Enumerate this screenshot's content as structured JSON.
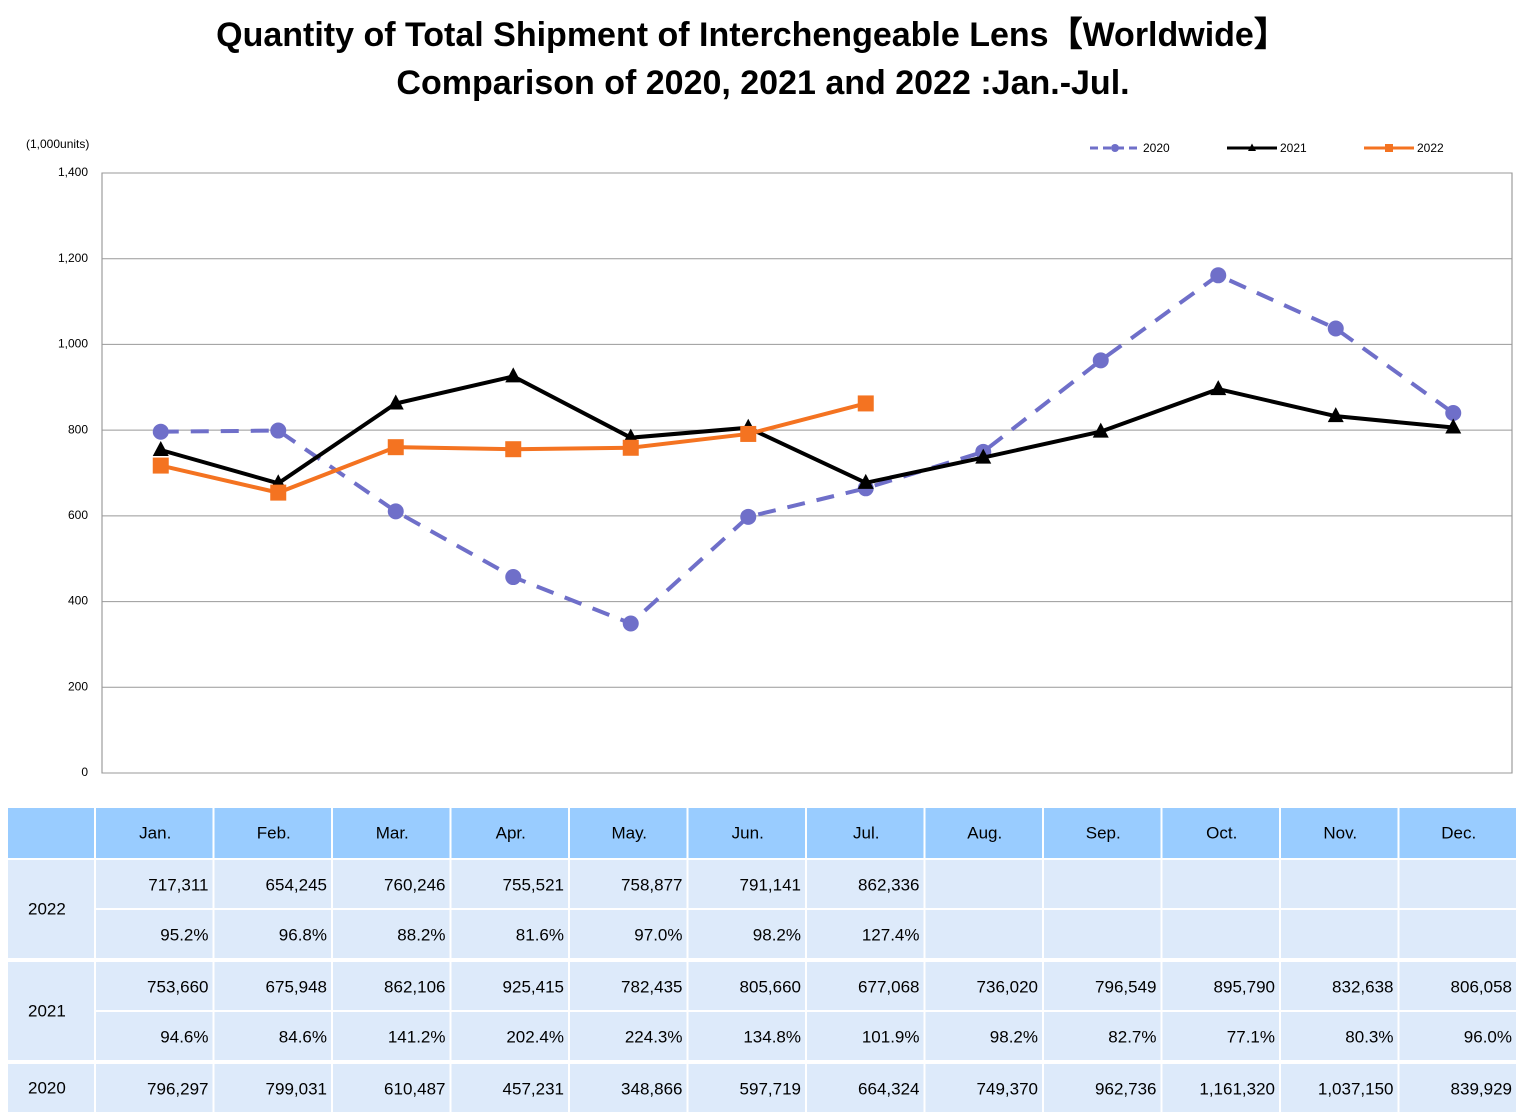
{
  "chart_data": {
    "type": "line",
    "title": [
      "Quantity of Total Shipment of Interchengeable Lens【Worldwide】",
      "Comparison of 2020, 2021 and 2022 :Jan.-Jul."
    ],
    "y_unit_label": "(1,000units)",
    "categories": [
      "Jan.",
      "Feb.",
      "Mar.",
      "Apr.",
      "May.",
      "Jun.",
      "Jul.",
      "Aug.",
      "Sep.",
      "Oct.",
      "Nov.",
      "Dec."
    ],
    "ylim": [
      0,
      1400
    ],
    "yticks": [
      0,
      200,
      400,
      600,
      800,
      {
        "value": 1000,
        "label": "1,000"
      },
      {
        "value": 1200,
        "label": "1,200"
      },
      {
        "value": 1400,
        "label": "1,400"
      }
    ],
    "grid": true,
    "legend": "top-right",
    "series": [
      {
        "name": "2020",
        "color": "#6f6fc9",
        "dash": true,
        "marker": "circle",
        "values": [
          796.297,
          799.031,
          610.487,
          457.231,
          348.866,
          597.719,
          664.324,
          749.37,
          962.736,
          1161.32,
          1037.15,
          839.929
        ]
      },
      {
        "name": "2021",
        "color": "#000000",
        "dash": false,
        "marker": "triangle",
        "values": [
          753.66,
          675.948,
          862.106,
          925.415,
          782.435,
          805.66,
          677.068,
          736.02,
          796.549,
          895.79,
          832.638,
          806.058
        ]
      },
      {
        "name": "2022",
        "color": "#f47321",
        "dash": false,
        "marker": "square",
        "values": [
          717.311,
          654.245,
          760.246,
          755.521,
          758.877,
          791.141,
          862.336,
          null,
          null,
          null,
          null,
          null
        ]
      }
    ]
  },
  "table": {
    "rows": [
      {
        "label": "2022",
        "values": [
          "717,311",
          "654,245",
          "760,246",
          "755,521",
          "758,877",
          "791,141",
          "862,336"
        ],
        "ratios": [
          "95.2%",
          "96.8%",
          "88.2%",
          "81.6%",
          "97.0%",
          "98.2%",
          "127.4%"
        ]
      },
      {
        "label": "2021",
        "values": [
          "753,660",
          "675,948",
          "862,106",
          "925,415",
          "782,435",
          "805,660",
          "677,068",
          "736,020",
          "796,549",
          "895,790",
          "832,638",
          "806,058"
        ],
        "ratios": [
          "94.6%",
          "84.6%",
          "141.2%",
          "202.4%",
          "224.3%",
          "134.8%",
          "101.9%",
          "98.2%",
          "82.7%",
          "77.1%",
          "80.3%",
          "96.0%"
        ]
      },
      {
        "label": "2020",
        "values": [
          "796,297",
          "799,031",
          "610,487",
          "457,231",
          "348,866",
          "597,719",
          "664,324",
          "749,370",
          "962,736",
          "1,161,320",
          "1,037,150",
          "839,929"
        ]
      }
    ]
  }
}
